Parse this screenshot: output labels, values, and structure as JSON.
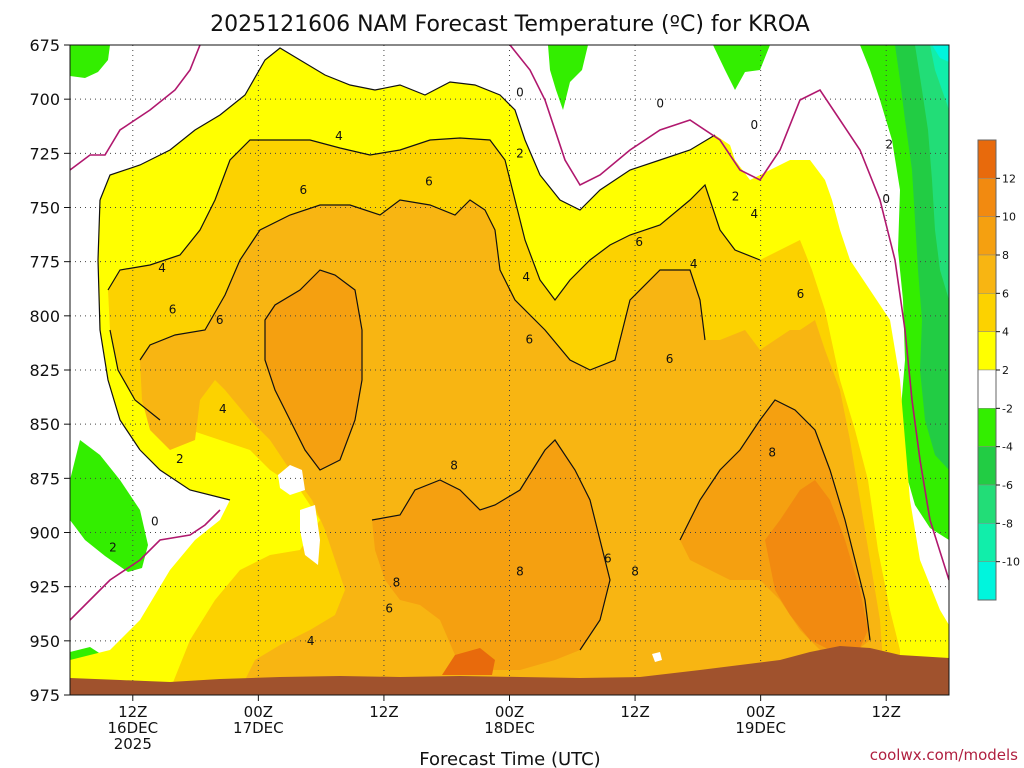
{
  "title": "2025121606 NAM Forecast Temperature (ºC) for KROA",
  "credit": "coolwx.com/models",
  "chart_data": {
    "type": "heatmap",
    "subtype": "time-height filled contour",
    "title": "2025121606 NAM Forecast Temperature (ºC) for KROA",
    "xlabel": "Forecast Time (UTC)",
    "ylabel": "",
    "y_levels": [
      675,
      700,
      725,
      750,
      775,
      800,
      825,
      850,
      875,
      900,
      925,
      950,
      975
    ],
    "ylim": [
      975,
      675
    ],
    "x_hours": [
      0,
      84
    ],
    "x_ticks": [
      {
        "hour": 6,
        "lines": [
          "12Z",
          "16DEC",
          "2025"
        ]
      },
      {
        "hour": 18,
        "lines": [
          "00Z",
          "17DEC"
        ]
      },
      {
        "hour": 30,
        "lines": [
          "12Z"
        ]
      },
      {
        "hour": 42,
        "lines": [
          "00Z",
          "18DEC"
        ]
      },
      {
        "hour": 54,
        "lines": [
          "12Z"
        ]
      },
      {
        "hour": 66,
        "lines": [
          "00Z",
          "19DEC"
        ]
      },
      {
        "hour": 78,
        "lines": [
          "12Z"
        ]
      }
    ],
    "grid": true,
    "colorbar": {
      "ticks": [
        "12",
        "10",
        "8",
        "6",
        "4",
        "2",
        "-2",
        "-4",
        "-6",
        "-8",
        "-10"
      ],
      "bins": [
        {
          "min": 12,
          "max": 14,
          "color": "#e86a0c"
        },
        {
          "min": 10,
          "max": 12,
          "color": "#f28a10"
        },
        {
          "min": 8,
          "max": 10,
          "color": "#f5a010"
        },
        {
          "min": 6,
          "max": 8,
          "color": "#f8b512"
        },
        {
          "min": 4,
          "max": 6,
          "color": "#fcd200"
        },
        {
          "min": 2,
          "max": 4,
          "color": "#ffff00"
        },
        {
          "min": -2,
          "max": 2,
          "color": "#ffffff"
        },
        {
          "min": -4,
          "max": -2,
          "color": "#33ee00"
        },
        {
          "min": -6,
          "max": -4,
          "color": "#22cc44"
        },
        {
          "min": -8,
          "max": -6,
          "color": "#22dd77"
        },
        {
          "min": -10,
          "max": -8,
          "color": "#11eeaa"
        },
        {
          "min": -12,
          "max": -10,
          "color": "#00f5dd"
        }
      ]
    },
    "contour_labels": [
      {
        "text": "0",
        "hour": 43.0,
        "level": 697
      },
      {
        "text": "0",
        "hour": 56.4,
        "level": 702
      },
      {
        "text": "0",
        "hour": 65.4,
        "level": 712
      },
      {
        "text": "2",
        "hour": 43.0,
        "level": 725
      },
      {
        "text": "2",
        "hour": 63.6,
        "level": 745
      },
      {
        "text": "4",
        "hour": 25.7,
        "level": 717
      },
      {
        "text": "4",
        "hour": 8.8,
        "level": 778
      },
      {
        "text": "4",
        "hour": 43.6,
        "level": 782
      },
      {
        "text": "4",
        "hour": 59.6,
        "level": 776
      },
      {
        "text": "4",
        "hour": 65.4,
        "level": 753
      },
      {
        "text": "6",
        "hour": 22.3,
        "level": 742
      },
      {
        "text": "6",
        "hour": 34.3,
        "level": 738
      },
      {
        "text": "6",
        "hour": 9.8,
        "level": 797
      },
      {
        "text": "6",
        "hour": 14.3,
        "level": 802
      },
      {
        "text": "6",
        "hour": 43.9,
        "level": 811
      },
      {
        "text": "6",
        "hour": 54.4,
        "level": 766
      },
      {
        "text": "6",
        "hour": 57.3,
        "level": 820
      },
      {
        "text": "6",
        "hour": 69.8,
        "level": 790
      },
      {
        "text": "6",
        "hour": 30.5,
        "level": 935
      },
      {
        "text": "6",
        "hour": 51.4,
        "level": 912
      },
      {
        "text": "4",
        "hour": 14.6,
        "level": 843
      },
      {
        "text": "4",
        "hour": 23.0,
        "level": 950
      },
      {
        "text": "2",
        "hour": 10.5,
        "level": 866
      },
      {
        "text": "2",
        "hour": 4.1,
        "level": 907
      },
      {
        "text": "0",
        "hour": 8.1,
        "level": 895
      },
      {
        "text": "8",
        "hour": 36.7,
        "level": 869
      },
      {
        "text": "8",
        "hour": 31.2,
        "level": 923
      },
      {
        "text": "8",
        "hour": 43.0,
        "level": 918
      },
      {
        "text": "8",
        "hour": 54.0,
        "level": 918
      },
      {
        "text": "8",
        "hour": 67.1,
        "level": 863
      },
      {
        "text": "0",
        "hour": 78.0,
        "level": 746
      },
      {
        "text": "2",
        "hour": 78.3,
        "level": 721
      }
    ]
  }
}
